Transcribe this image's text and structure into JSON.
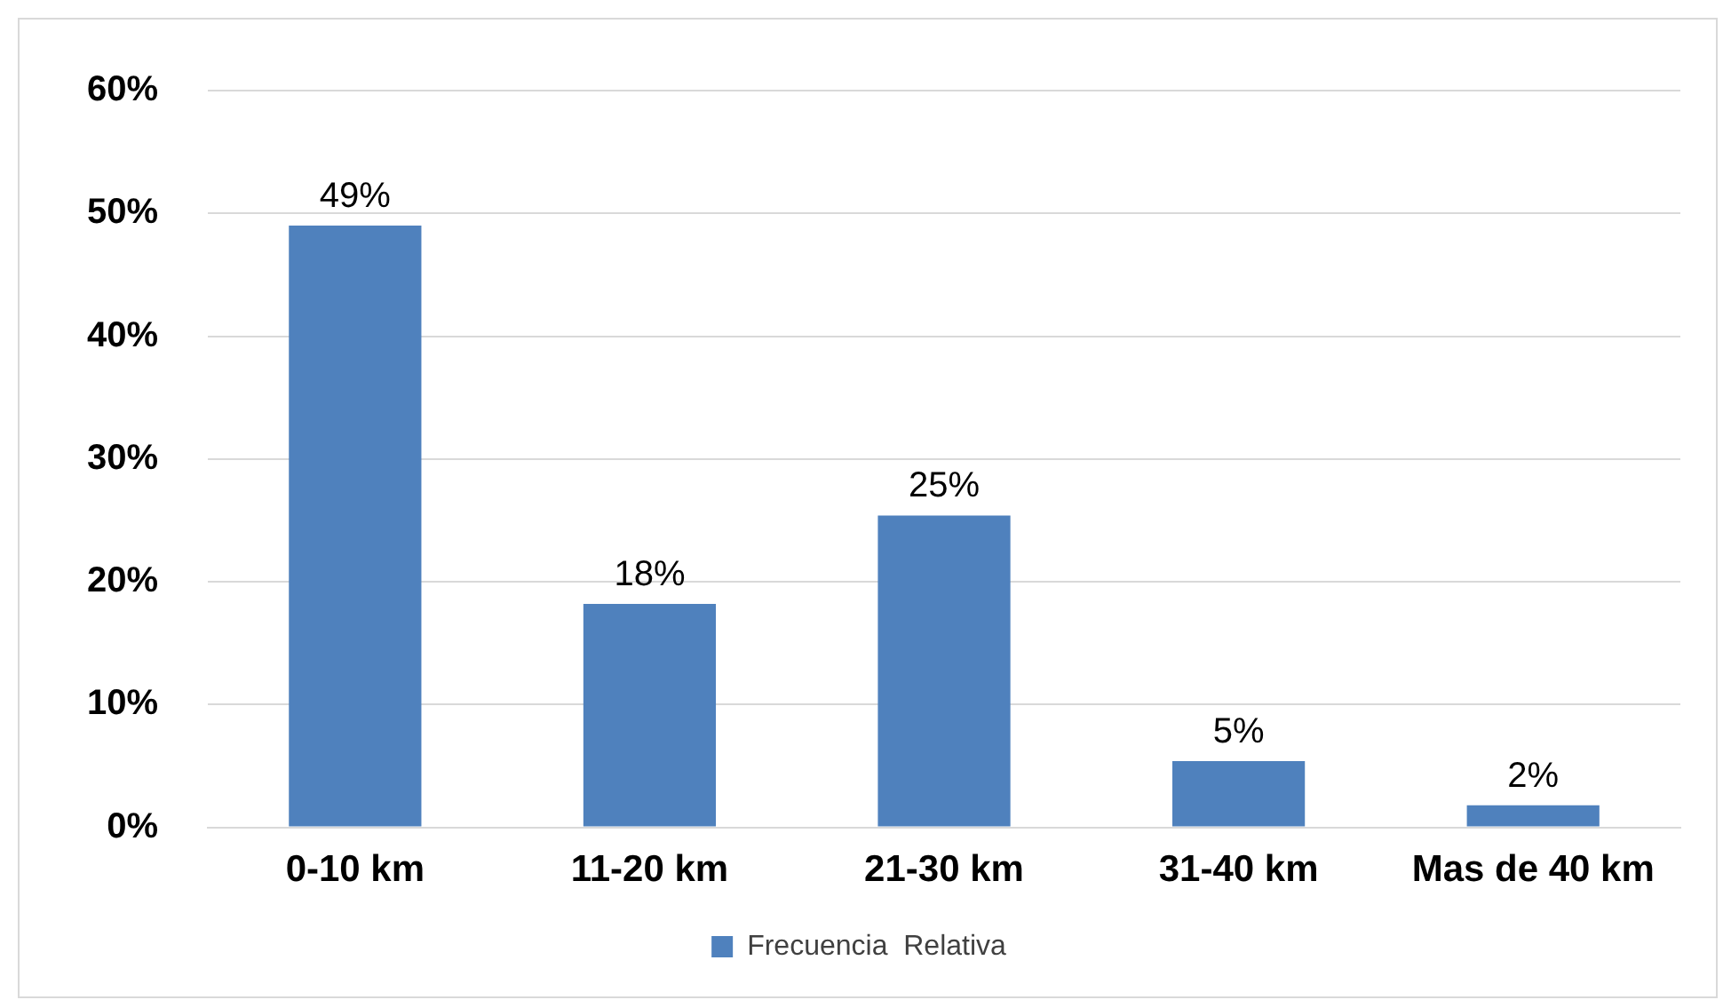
{
  "chart_data": {
    "type": "bar",
    "categories": [
      "0-10 km",
      "11-20 km",
      "21-30 km",
      "31-40 km",
      "Mas de 40 km"
    ],
    "series": [
      {
        "name": "Frecuencia  Relativa",
        "color": "#4f81bd",
        "values": [
          49,
          18.2,
          25.4,
          5.4,
          1.8
        ],
        "value_labels": [
          "49%",
          "18%",
          "25%",
          "5%",
          "2%"
        ]
      }
    ],
    "ylim": [
      0,
      60
    ],
    "yticks": [
      {
        "value": 0,
        "label": "0%"
      },
      {
        "value": 10,
        "label": "10%"
      },
      {
        "value": 20,
        "label": "20%"
      },
      {
        "value": 30,
        "label": "30%"
      },
      {
        "value": 40,
        "label": "40%"
      },
      {
        "value": 50,
        "label": "50%"
      },
      {
        "value": 60,
        "label": "60%"
      }
    ],
    "grid": "y",
    "legend": "bottom"
  }
}
